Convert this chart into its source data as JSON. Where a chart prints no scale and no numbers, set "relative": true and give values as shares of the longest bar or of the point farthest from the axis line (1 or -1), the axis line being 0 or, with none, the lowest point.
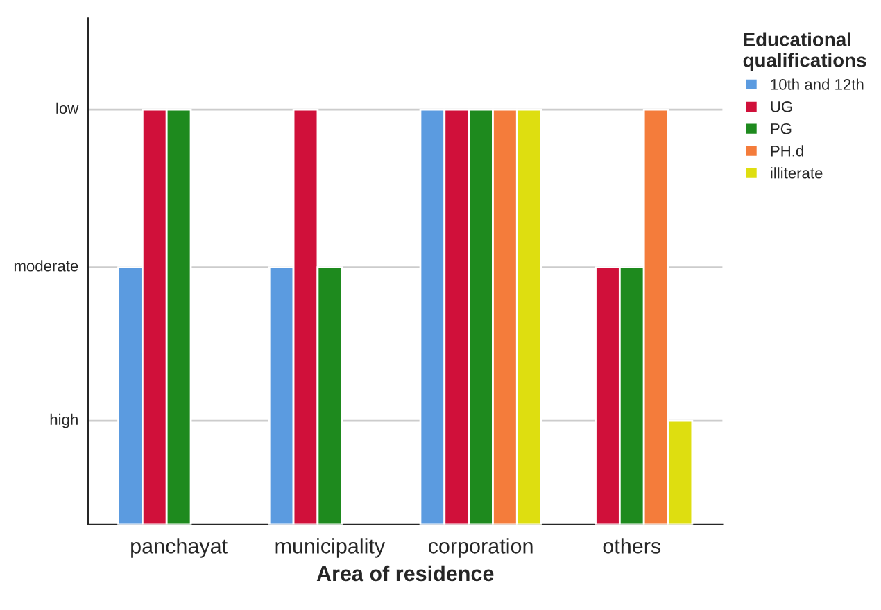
{
  "chart_data": {
    "type": "bar",
    "xlabel": "Area of residence",
    "legend_title": "Educational qualifications",
    "categories": [
      "panchayat",
      "municipality",
      "corporation",
      "others"
    ],
    "series": [
      {
        "name": "10th and 12th",
        "color": "#5b9be0",
        "values": [
          0.62,
          0.62,
          1,
          null
        ]
      },
      {
        "name": "UG",
        "color": "#d0103a",
        "values": [
          1,
          1,
          1,
          0.62
        ]
      },
      {
        "name": "PG",
        "color": "#1e8a1e",
        "values": [
          1,
          0.62,
          1,
          0.62
        ]
      },
      {
        "name": "PH.d",
        "color": "#f47c3b",
        "values": [
          null,
          null,
          1,
          1
        ]
      },
      {
        "name": "illiterate",
        "color": "#dede10",
        "values": [
          null,
          null,
          1,
          0.25
        ]
      }
    ],
    "relative": true,
    "ref_lines": [
      {
        "axis": "y",
        "value": 0.25,
        "label": "high",
        "color": "#cccccc"
      },
      {
        "axis": "y",
        "value": 0.62,
        "label": "moderate",
        "color": "#cccccc"
      },
      {
        "axis": "y",
        "value": 1,
        "label": "low",
        "color": "#cccccc"
      }
    ],
    "legend": "right"
  }
}
